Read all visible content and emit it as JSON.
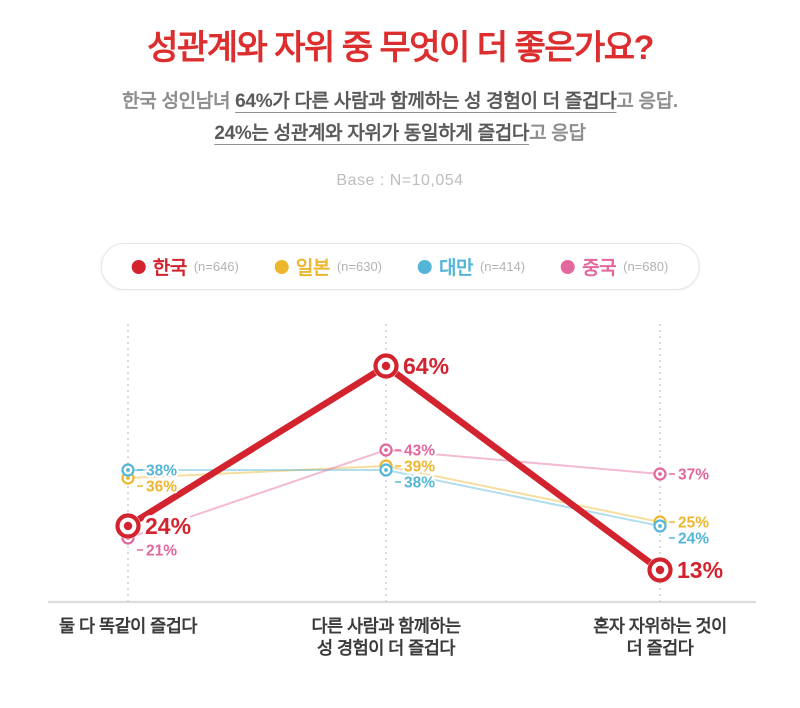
{
  "title": {
    "text": "성관계와 자위 중 무엇이 더 좋은가요?",
    "color": "#dc2e2e"
  },
  "subtitle": {
    "lines": [
      {
        "segments": [
          {
            "text": "한국 성인남녀 ",
            "emph": false
          },
          {
            "text": "64%가 다른 사람과 함께하는 성 경험이 더 즐겁다",
            "emph": true
          },
          {
            "text": "고 응답.",
            "emph": false
          }
        ]
      },
      {
        "segments": [
          {
            "text": "24%는 성관계와 자위가 동일하게 즐겁다",
            "emph": true
          },
          {
            "text": "고 응답",
            "emph": false
          }
        ]
      }
    ]
  },
  "base_note": "Base : N=10,054",
  "legend": {
    "items": [
      {
        "name": "한국",
        "count": "(n=646)",
        "color": "#d2232e"
      },
      {
        "name": "일본",
        "count": "(n=630)",
        "color": "#ecb62f"
      },
      {
        "name": "대만",
        "count": "(n=414)",
        "color": "#53b6d8"
      },
      {
        "name": "중국",
        "count": "(n=680)",
        "color": "#e2679d"
      }
    ]
  },
  "chart_data": {
    "type": "line",
    "categories": [
      "둘 다 똑같이 즐겁다",
      "다른 사람과 함께하는 성 경험이 더 즐겁다",
      "혼자 자위하는 것이 더 즐겁다"
    ],
    "category_label_lines": [
      [
        "둘 다 똑같이 즐겁다"
      ],
      [
        "다른 사람과 함께하는",
        "성 경험이 더 즐겁다"
      ],
      [
        "혼자 자위하는 것이",
        "더 즐겁다"
      ]
    ],
    "series": [
      {
        "name": "한국",
        "color": "#d2232e",
        "values": [
          24,
          64,
          13
        ],
        "emphasis": true
      },
      {
        "name": "일본",
        "color": "#ecb62f",
        "values": [
          36,
          39,
          25
        ],
        "emphasis": false
      },
      {
        "name": "대만",
        "color": "#53b6d8",
        "values": [
          38,
          38,
          24
        ],
        "emphasis": false
      },
      {
        "name": "중국",
        "color": "#e2679d",
        "values": [
          21,
          43,
          37
        ],
        "emphasis": false
      }
    ],
    "value_suffix": "%",
    "ylim": [
      0,
      70
    ],
    "grid": "dashed-vertical-per-category",
    "legend_position": "top"
  }
}
